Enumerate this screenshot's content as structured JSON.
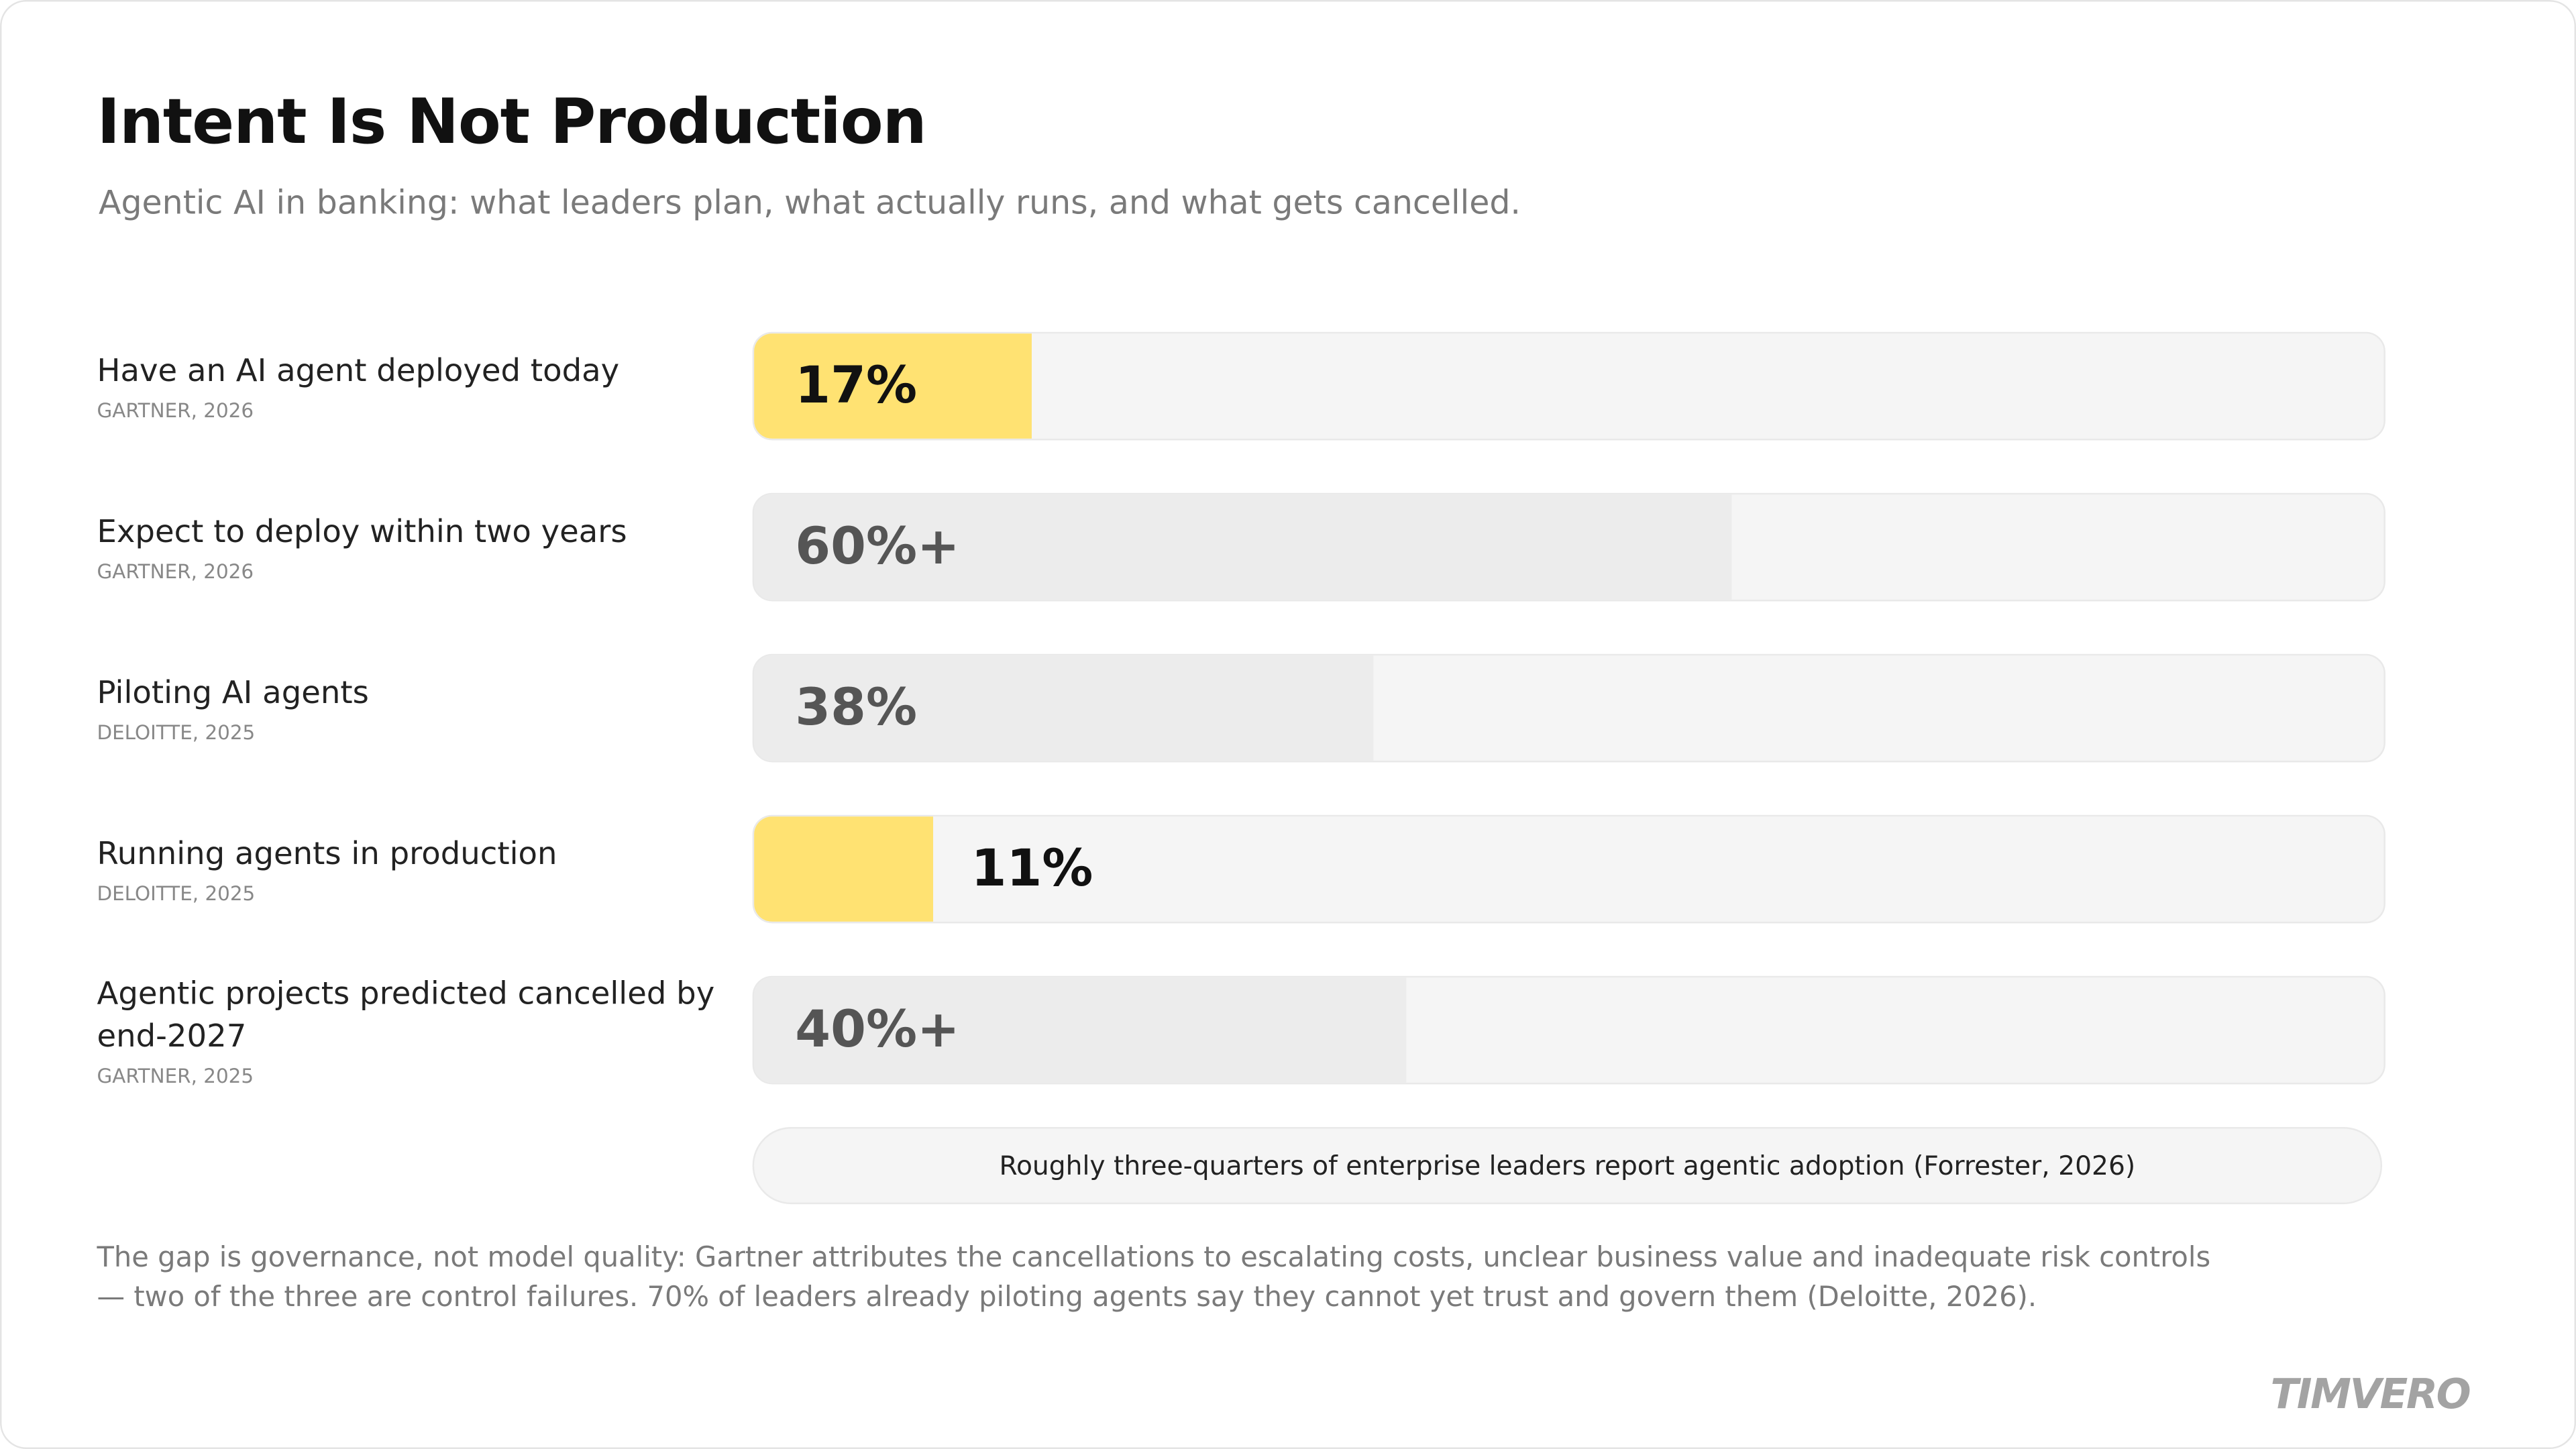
{
  "chart_data": {
    "type": "hbar",
    "title": "Intent Is Not Production",
    "subtitle": "Agentic AI in banking: what leaders plan, what actually runs, and what gets cancelled.",
    "categories": [
      "Have an AI agent deployed today",
      "Expect to deploy within two years",
      "Piloting AI agents",
      "Running agents in production",
      "Agentic projects predicted cancelled by end-2027"
    ],
    "sources": [
      "GARTNER, 2026",
      "GARTNER, 2026",
      "DELOITTE, 2025",
      "DELOITTE, 2025",
      "GARTNER, 2025"
    ],
    "values": [
      17,
      60,
      38,
      11,
      40
    ],
    "value_labels": [
      "17%",
      "60%+",
      "38%",
      "11%",
      "40%+"
    ],
    "colors": [
      "#ffe272",
      "#ececec",
      "#ececec",
      "#ffe272",
      "#ececec"
    ],
    "xlim": [
      0,
      100
    ],
    "callout": "Roughly three-quarters of enterprise leaders report agentic adoption (Forrester, 2026)",
    "footnote": "The gap is governance, not model quality: Gartner attributes the cancellations to escalating costs, unclear business value and inadequate risk controls — two of the three are control failures. 70% of leaders already piloting agents say they cannot yet trust and govern them (Deloitte, 2026).",
    "logo": "TIMVERO"
  }
}
